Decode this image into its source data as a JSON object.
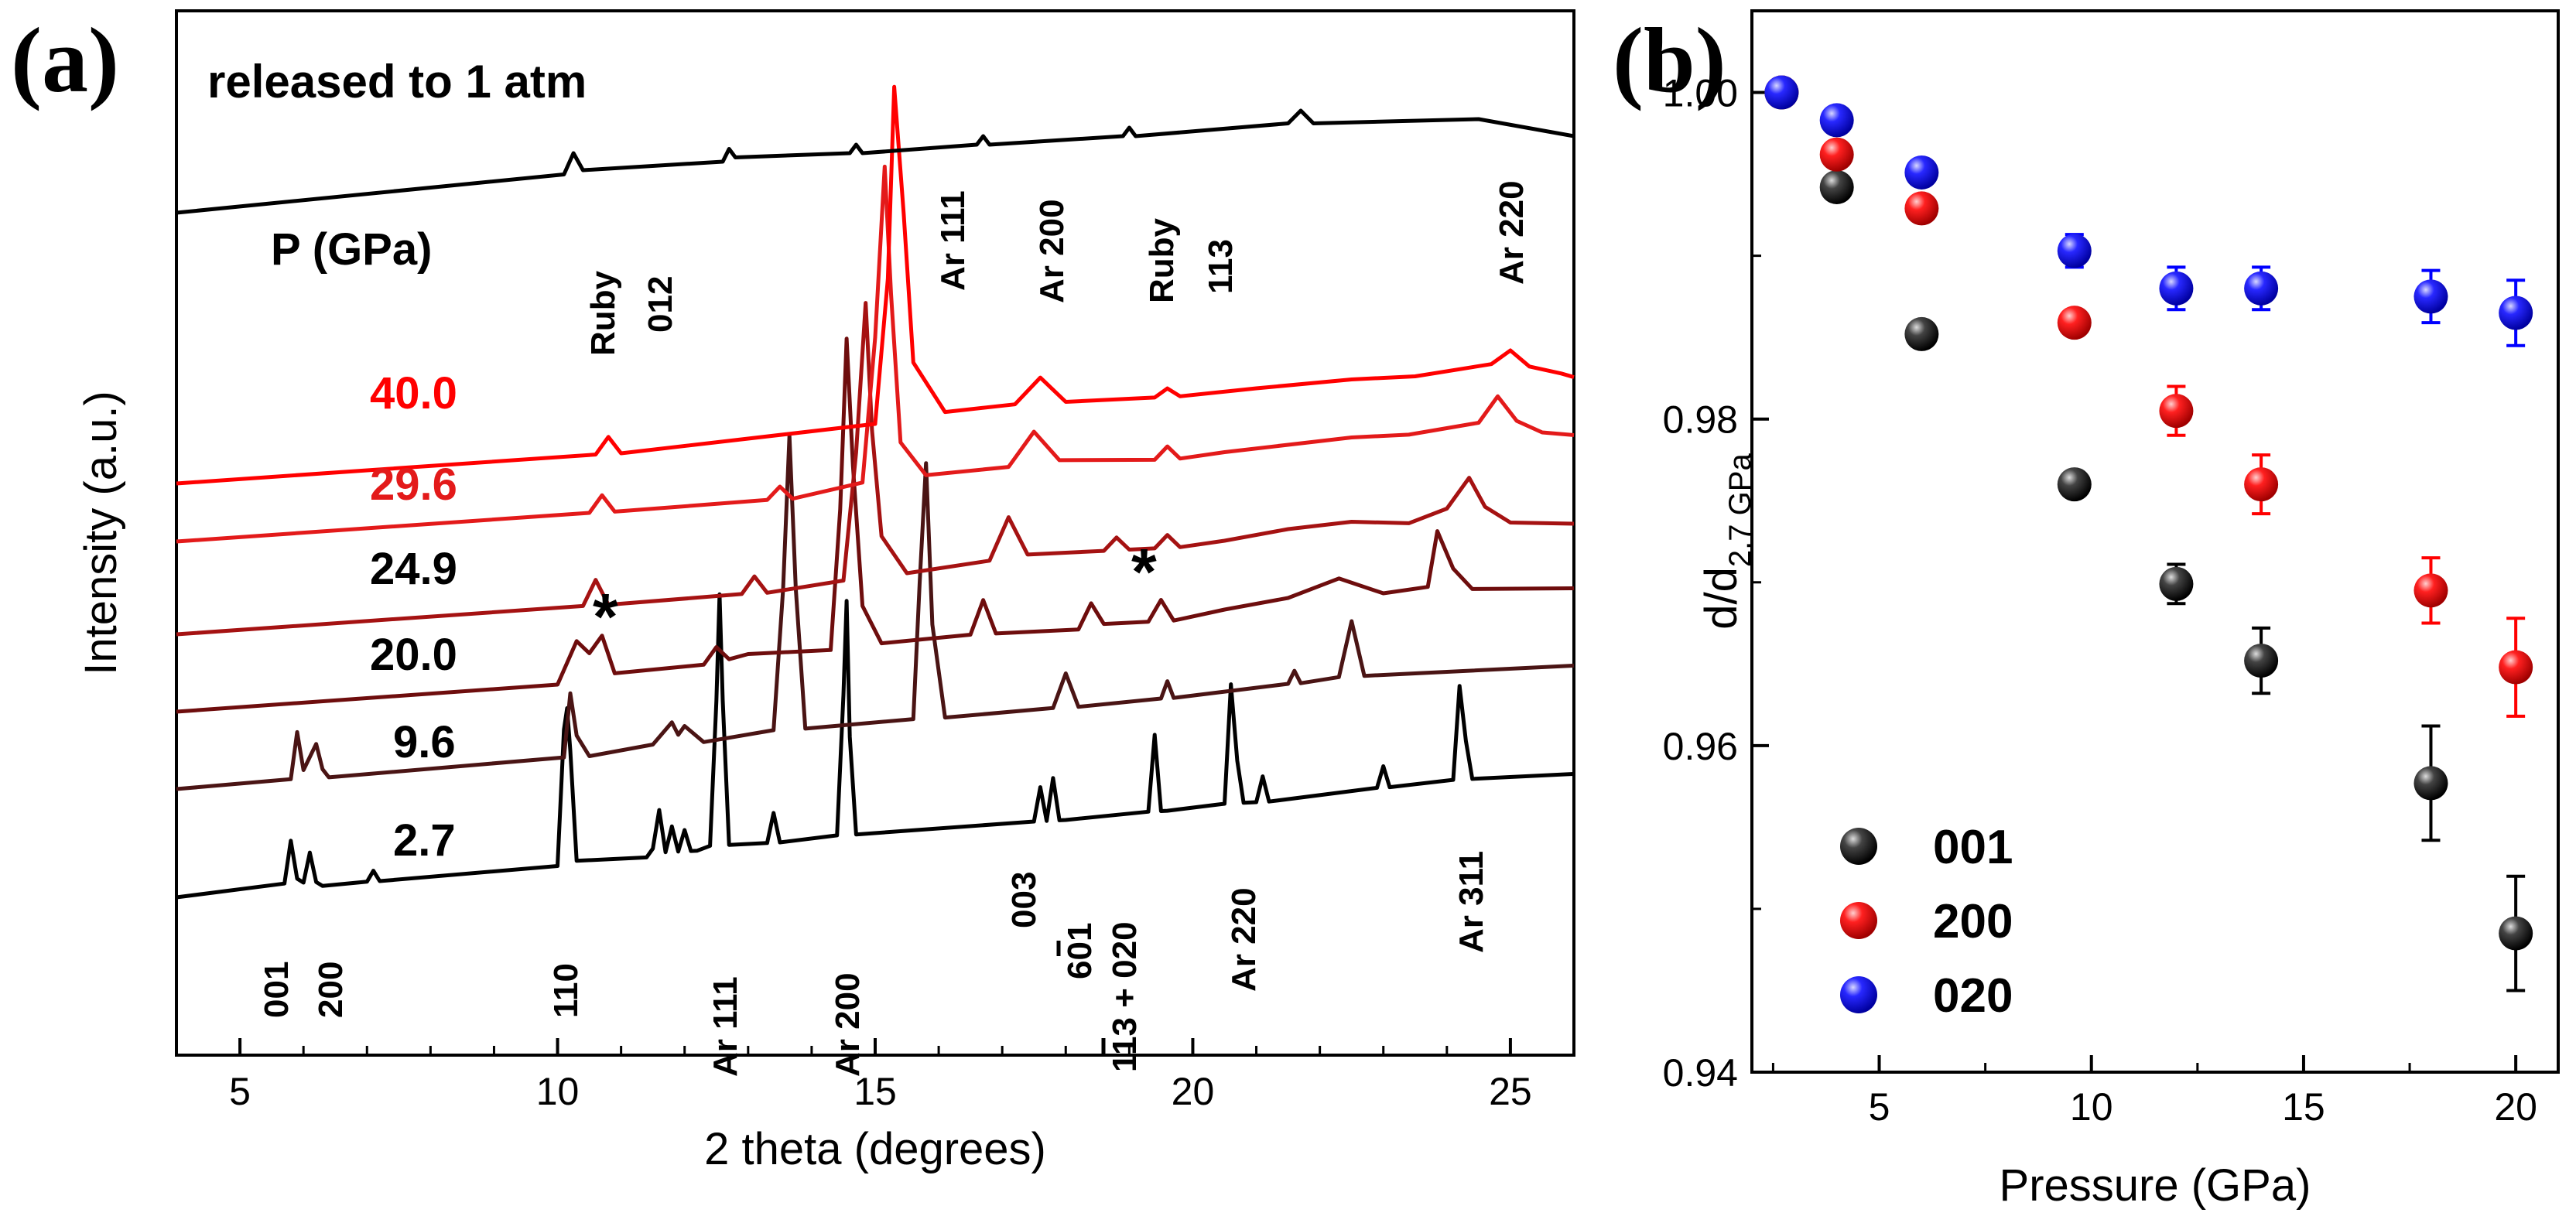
{
  "panel_a": {
    "label": "(a)",
    "top_label": "released to 1 atm",
    "pressure_header": "P (GPa)",
    "xlabel": "2 theta (degrees)",
    "ylabel": "Intensity (a.u.)",
    "xlim": [
      4,
      26
    ],
    "xticks": [
      "5",
      "10",
      "15",
      "20",
      "25"
    ],
    "colors": {
      "40.0": "#ff0000",
      "29.6": "#e31a1a",
      "24.9": "#a51212",
      "20.0": "#6e0d0d",
      "9.6": "#4a1414",
      "2.7": "#000000"
    }
  },
  "panel_b": {
    "label": "(b)",
    "xlabel": "Pressure (GPa)",
    "ylabel_main": "d/d",
    "ylabel_sub": "2.7 GPa",
    "xlim": [
      2,
      21
    ],
    "ylim": [
      0.94,
      1.005
    ],
    "xticks": [
      "5",
      "10",
      "15",
      "20"
    ],
    "yticks": [
      "0.94",
      "0.96",
      "0.98",
      "1.00"
    ]
  },
  "chart_data": [
    {
      "type": "line",
      "panel": "a",
      "xlabel": "2 theta (degrees)",
      "ylabel": "Intensity (a.u.)",
      "xlim": [
        4,
        26
      ],
      "series": [
        {
          "name": "2.7",
          "color": "#000000",
          "x": [
            4,
            5.7,
            5.8,
            5.9,
            6.0,
            6.1,
            6.2,
            6.3,
            7.0,
            7.1,
            7.2,
            10.0,
            10.1,
            10.15,
            10.2,
            10.3,
            11.4,
            11.5,
            11.6,
            11.7,
            11.8,
            11.9,
            12.0,
            12.1,
            12.2,
            12.4,
            12.5,
            12.55,
            12.6,
            12.7,
            13.3,
            13.4,
            13.5,
            14.4,
            14.5,
            14.55,
            14.6,
            14.7,
            17.5,
            17.6,
            17.7,
            17.8,
            17.9,
            18.0,
            19.3,
            19.4,
            19.5,
            19.6,
            20.5,
            20.6,
            20.7,
            20.8,
            21.0,
            21.1,
            21.2,
            22.9,
            23.0,
            23.1,
            24.1,
            24.2,
            24.3,
            24.4,
            26
          ],
          "y": [
            0,
            0.2,
            1.2,
            0.3,
            0.2,
            0.9,
            0.2,
            0.1,
            0.15,
            0.4,
            0.15,
            0.3,
            3.5,
            4.0,
            3.0,
            0.4,
            0.4,
            0.6,
            1.5,
            0.5,
            1.1,
            0.5,
            1.0,
            0.5,
            0.5,
            0.6,
            4.0,
            6.5,
            4.0,
            0.6,
            0.6,
            1.3,
            0.6,
            0.7,
            4.0,
            6.2,
            3.0,
            0.7,
            0.8,
            1.6,
            0.8,
            1.8,
            0.8,
            0.8,
            0.9,
            2.7,
            0.9,
            0.9,
            1.0,
            3.8,
            2.0,
            1.0,
            1.0,
            1.6,
            1.0,
            1.2,
            1.7,
            1.2,
            1.3,
            3.5,
            2.2,
            1.3,
            1.3
          ]
        },
        {
          "name": "9.6",
          "color": "#4a1414",
          "x": [
            4,
            5.8,
            5.9,
            6.0,
            6.2,
            6.3,
            6.4,
            10.1,
            10.2,
            10.3,
            10.5,
            11.5,
            11.8,
            11.9,
            12.0,
            12.3,
            13.4,
            13.55,
            13.65,
            13.75,
            13.9,
            15.6,
            15.7,
            15.8,
            15.9,
            16.1,
            17.8,
            18.0,
            18.2,
            19.5,
            19.6,
            19.7,
            21.5,
            21.6,
            21.7,
            22.3,
            22.5,
            22.7,
            23.5,
            26
          ],
          "y": [
            0,
            0.1,
            1.2,
            0.3,
            0.9,
            0.3,
            0.1,
            0.3,
            1.8,
            0.8,
            0.3,
            0.5,
            1.0,
            0.7,
            0.9,
            0.5,
            0.7,
            4.0,
            7.6,
            4.0,
            0.7,
            0.8,
            4.0,
            6.8,
            3.0,
            0.8,
            0.9,
            1.7,
            0.9,
            1.0,
            1.4,
            1.0,
            1.2,
            1.5,
            1.2,
            1.3,
            2.6,
            1.3,
            1.3,
            1.3
          ]
        },
        {
          "name": "20.0",
          "color": "#6e0d0d",
          "x": [
            4,
            10.0,
            10.3,
            10.5,
            10.7,
            10.9,
            12.3,
            12.5,
            12.7,
            13.0,
            14.3,
            14.45,
            14.55,
            14.65,
            14.8,
            15.1,
            16.5,
            16.7,
            16.9,
            18.2,
            18.4,
            18.6,
            19.3,
            19.5,
            19.7,
            20.5,
            21.5,
            22.3,
            23.0,
            23.7,
            23.85,
            24.1,
            24.4,
            26
          ],
          "y": [
            0,
            0.2,
            1.2,
            0.9,
            1.3,
            0.4,
            0.5,
            0.9,
            0.6,
            0.7,
            0.7,
            4.0,
            8.0,
            5.0,
            1.7,
            0.8,
            0.9,
            1.7,
            0.9,
            0.9,
            1.5,
            1.0,
            1.0,
            1.5,
            1.0,
            1.2,
            1.4,
            1.8,
            1.4,
            1.5,
            2.8,
            1.9,
            1.4,
            1.3
          ]
        },
        {
          "name": "24.9",
          "color": "#a51212",
          "x": [
            4,
            10.4,
            10.6,
            10.8,
            12.9,
            13.1,
            13.3,
            14.5,
            14.7,
            14.85,
            14.95,
            15.1,
            15.5,
            16.8,
            17.1,
            17.4,
            18.6,
            18.8,
            19.0,
            19.4,
            19.6,
            19.8,
            20.5,
            21.5,
            22.5,
            23.4,
            24.0,
            24.35,
            24.6,
            25.0,
            26
          ],
          "y": [
            0,
            0.2,
            0.8,
            0.2,
            0.3,
            0.7,
            0.3,
            0.5,
            3.5,
            7.0,
            4.0,
            1.5,
            0.6,
            0.8,
            1.8,
            0.9,
            0.9,
            1.2,
            0.9,
            0.9,
            1.2,
            0.9,
            1.0,
            1.2,
            1.3,
            1.2,
            1.5,
            2.2,
            1.5,
            1.1,
            1.0
          ]
        },
        {
          "name": "29.6",
          "color": "#e31a1a",
          "x": [
            4,
            10.5,
            10.7,
            10.9,
            13.3,
            13.5,
            13.7,
            14.8,
            15.0,
            15.15,
            15.25,
            15.4,
            15.8,
            17.1,
            17.5,
            17.9,
            19.4,
            19.6,
            19.8,
            20.5,
            21.5,
            22.5,
            23.4,
            24.5,
            24.8,
            25.1,
            25.5,
            26
          ],
          "y": [
            0,
            0.2,
            0.6,
            0.2,
            0.3,
            0.6,
            0.3,
            0.6,
            4.0,
            8.0,
            5.0,
            1.5,
            0.7,
            0.8,
            1.6,
            0.9,
            0.8,
            1.1,
            0.8,
            0.9,
            1.0,
            1.1,
            1.1,
            1.3,
            1.9,
            1.3,
            1.0,
            0.9
          ]
        },
        {
          "name": "40.0",
          "color": "#ff0000",
          "x": [
            4,
            10.6,
            10.8,
            11.0,
            15.0,
            15.2,
            15.3,
            15.45,
            15.6,
            16.1,
            17.2,
            17.6,
            18.0,
            19.4,
            19.6,
            19.8,
            21.0,
            22.5,
            23.5,
            24.7,
            25.0,
            25.3,
            25.8,
            26
          ],
          "y": [
            0,
            0.2,
            0.6,
            0.2,
            0.6,
            4.0,
            8.5,
            5.5,
            2.0,
            0.8,
            0.9,
            1.5,
            0.9,
            0.9,
            1.1,
            0.9,
            1.0,
            1.1,
            1.1,
            1.3,
            1.6,
            1.2,
            1.0,
            0.9
          ]
        },
        {
          "name": "released to 1 atm",
          "color": "#000000",
          "x": [
            4,
            10.1,
            10.25,
            10.4,
            12.6,
            12.7,
            12.8,
            14.6,
            14.7,
            14.8,
            16.6,
            16.7,
            16.8,
            18.9,
            19.0,
            19.1,
            21.5,
            21.7,
            21.9,
            24.5,
            26
          ],
          "y": [
            0,
            0.9,
            1.4,
            1.0,
            1.2,
            1.5,
            1.3,
            1.4,
            1.6,
            1.4,
            1.6,
            1.8,
            1.6,
            1.8,
            2.0,
            1.8,
            2.1,
            2.4,
            2.1,
            2.2,
            1.8
          ]
        }
      ],
      "pressure_labels": [
        "40.0",
        "29.6",
        "24.9",
        "20.0",
        "9.6",
        "2.7"
      ],
      "annotations_high": [
        "Ruby 012",
        "Ar 111",
        "Ar 200",
        "Ruby 113",
        "Ar 220"
      ],
      "annotations_low": [
        "001",
        "200",
        "110",
        "Ar 111",
        "Ar 200",
        "003",
        "601",
        "113 + 020",
        "Ar 220",
        "Ar 311"
      ],
      "markers": [
        "*",
        "*"
      ]
    },
    {
      "type": "scatter",
      "panel": "b",
      "xlabel": "Pressure (GPa)",
      "ylabel": "d/d2.7 GPa",
      "xlim": [
        2,
        21
      ],
      "ylim": [
        0.94,
        1.005
      ],
      "legend_position": "bottom-left",
      "series": [
        {
          "name": "001",
          "color": "#000000",
          "x": [
            2.7,
            4.0,
            6.0,
            9.6,
            12.0,
            14.0,
            18.0,
            20.0
          ],
          "y": [
            1.0,
            0.9942,
            0.9852,
            0.976,
            0.9699,
            0.9652,
            0.9577,
            0.9485
          ],
          "err": [
            0,
            0.0005,
            0.0005,
            0.0005,
            0.0012,
            0.002,
            0.0035,
            0.0035
          ]
        },
        {
          "name": "200",
          "color": "#ff0000",
          "x": [
            2.7,
            4.0,
            6.0,
            9.6,
            12.0,
            14.0,
            18.0,
            20.0
          ],
          "y": [
            1.0,
            0.9962,
            0.9929,
            0.9859,
            0.9805,
            0.976,
            0.9695,
            0.9648
          ],
          "err": [
            0,
            0.0005,
            0.0005,
            0.0005,
            0.0015,
            0.0018,
            0.002,
            0.003
          ]
        },
        {
          "name": "020",
          "color": "#0000ff",
          "x": [
            2.7,
            4.0,
            6.0,
            9.6,
            12.0,
            14.0,
            18.0,
            20.0
          ],
          "y": [
            1.0,
            0.9983,
            0.9951,
            0.9903,
            0.988,
            0.988,
            0.9875,
            0.9865
          ],
          "err": [
            0,
            0.0005,
            0.0005,
            0.001,
            0.0013,
            0.0013,
            0.0016,
            0.002
          ]
        }
      ]
    }
  ]
}
